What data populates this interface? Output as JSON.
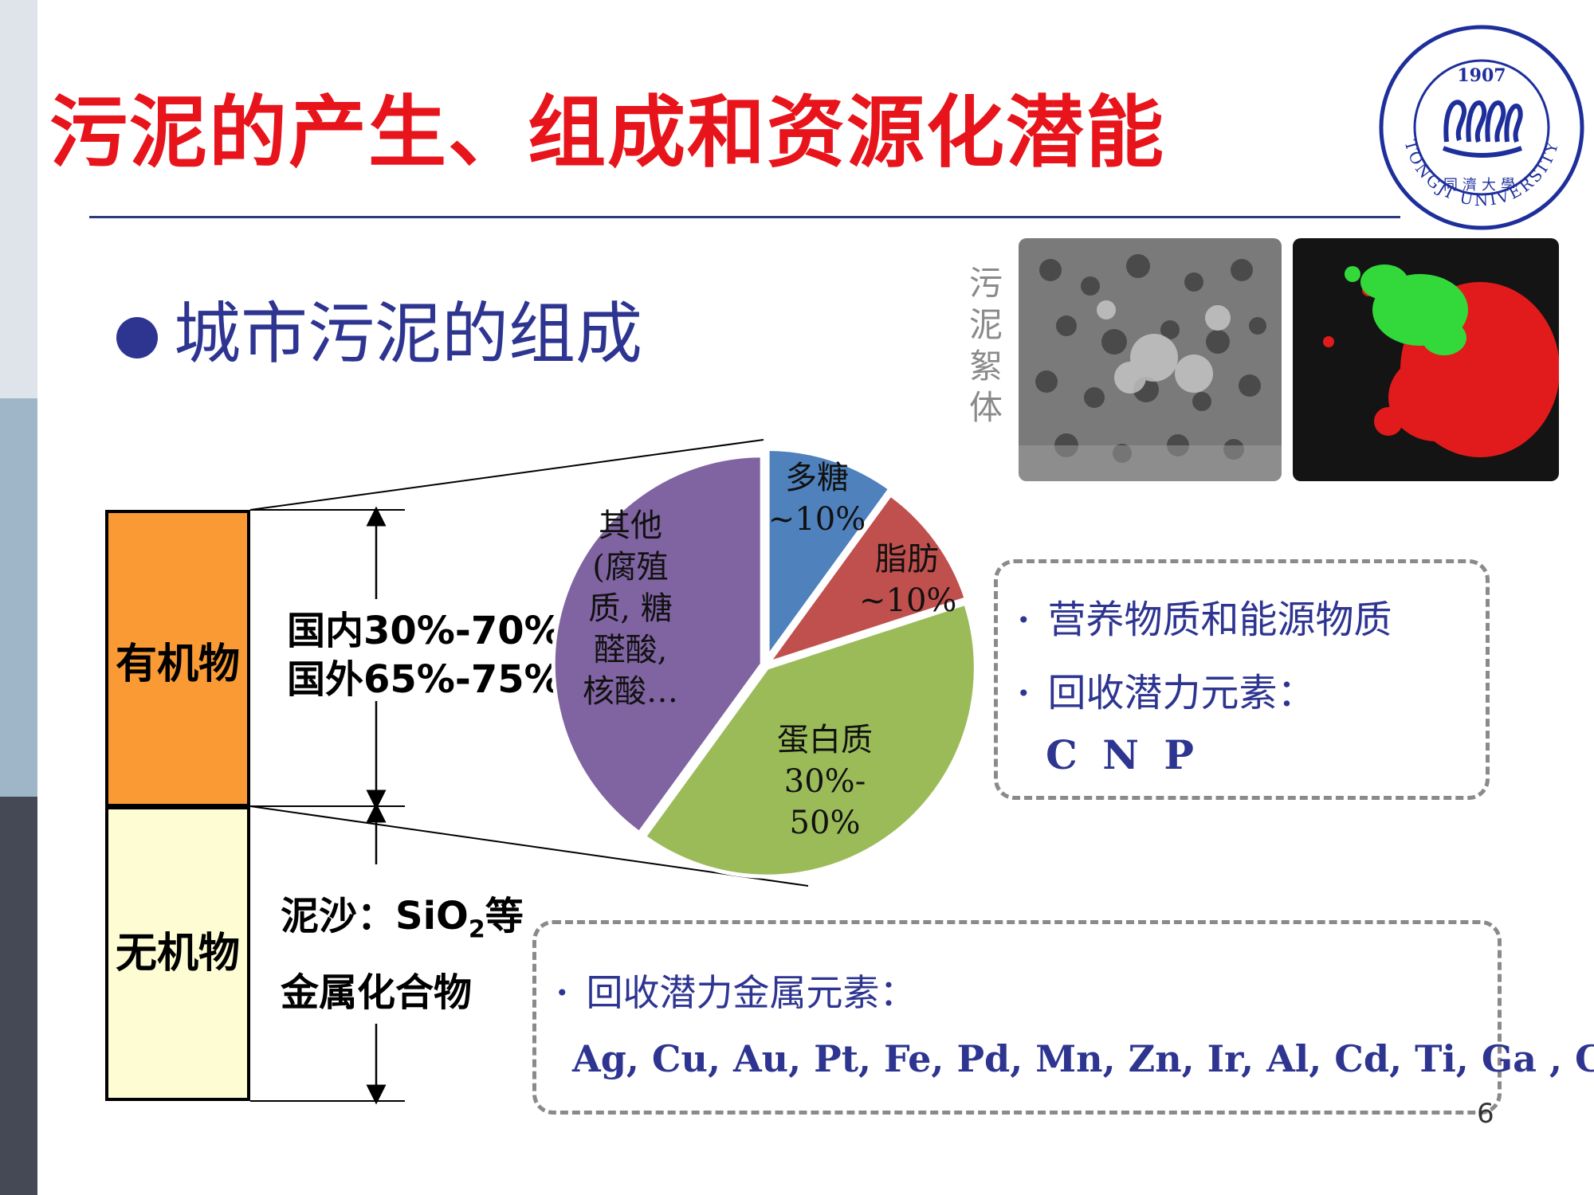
{
  "slide": {
    "title": "污泥的产生、组成和资源化潜能",
    "bullet": "城市污泥的组成",
    "floc_label": "污泥絮体",
    "page_number": "6"
  },
  "colors": {
    "title": "#e8141c",
    "accent": "#2e3591",
    "organic_bar": "#f99a35",
    "inorganic_bar": "#fdfcd2"
  },
  "column": {
    "organic_label": "有机物",
    "organic_pct_line1": "国内30%-70%",
    "organic_pct_line2": "国外65%-75%",
    "inorganic_label": "无机物",
    "inorganic_line1_pre": "泥沙：SiO",
    "inorganic_line1_sub": "2",
    "inorganic_line1_post": "等",
    "inorganic_line2": "金属化合物"
  },
  "chart_data": {
    "type": "pie",
    "labels": {
      "poly": [
        "多糖",
        "~10%"
      ],
      "fat": [
        "脂肪",
        "~10%"
      ],
      "protein": [
        "蛋白质",
        "30%-",
        "50%"
      ],
      "other": [
        "其他",
        "(腐殖",
        "质, 糖",
        "醛酸,",
        "核酸…"
      ]
    },
    "slices": [
      {
        "name": "多糖",
        "value": 10,
        "color": "#4f81bd"
      },
      {
        "name": "脂肪",
        "value": 10,
        "color": "#c0504d"
      },
      {
        "name": "蛋白质",
        "value": 40,
        "color": "#9bbb59"
      },
      {
        "name": "其他",
        "value": 40,
        "color": "#8064a2"
      }
    ]
  },
  "nutrient_box": {
    "item1": "营养物质和能源物质",
    "item2": "回收潜力元素：",
    "elements": "C N P",
    "bullet_char": "•"
  },
  "metal_box": {
    "item1": "回收潜力金属元素：",
    "elements": "Ag, Cu, Au, Pt, Fe, Pd, Mn, Zn, Ir, Al, Cd, Ti, Ga , Cr",
    "bullet_char": "•"
  },
  "logo": {
    "year": "1907",
    "university": "TONGJI UNIVERSITY",
    "chinese": "同濟大學"
  }
}
